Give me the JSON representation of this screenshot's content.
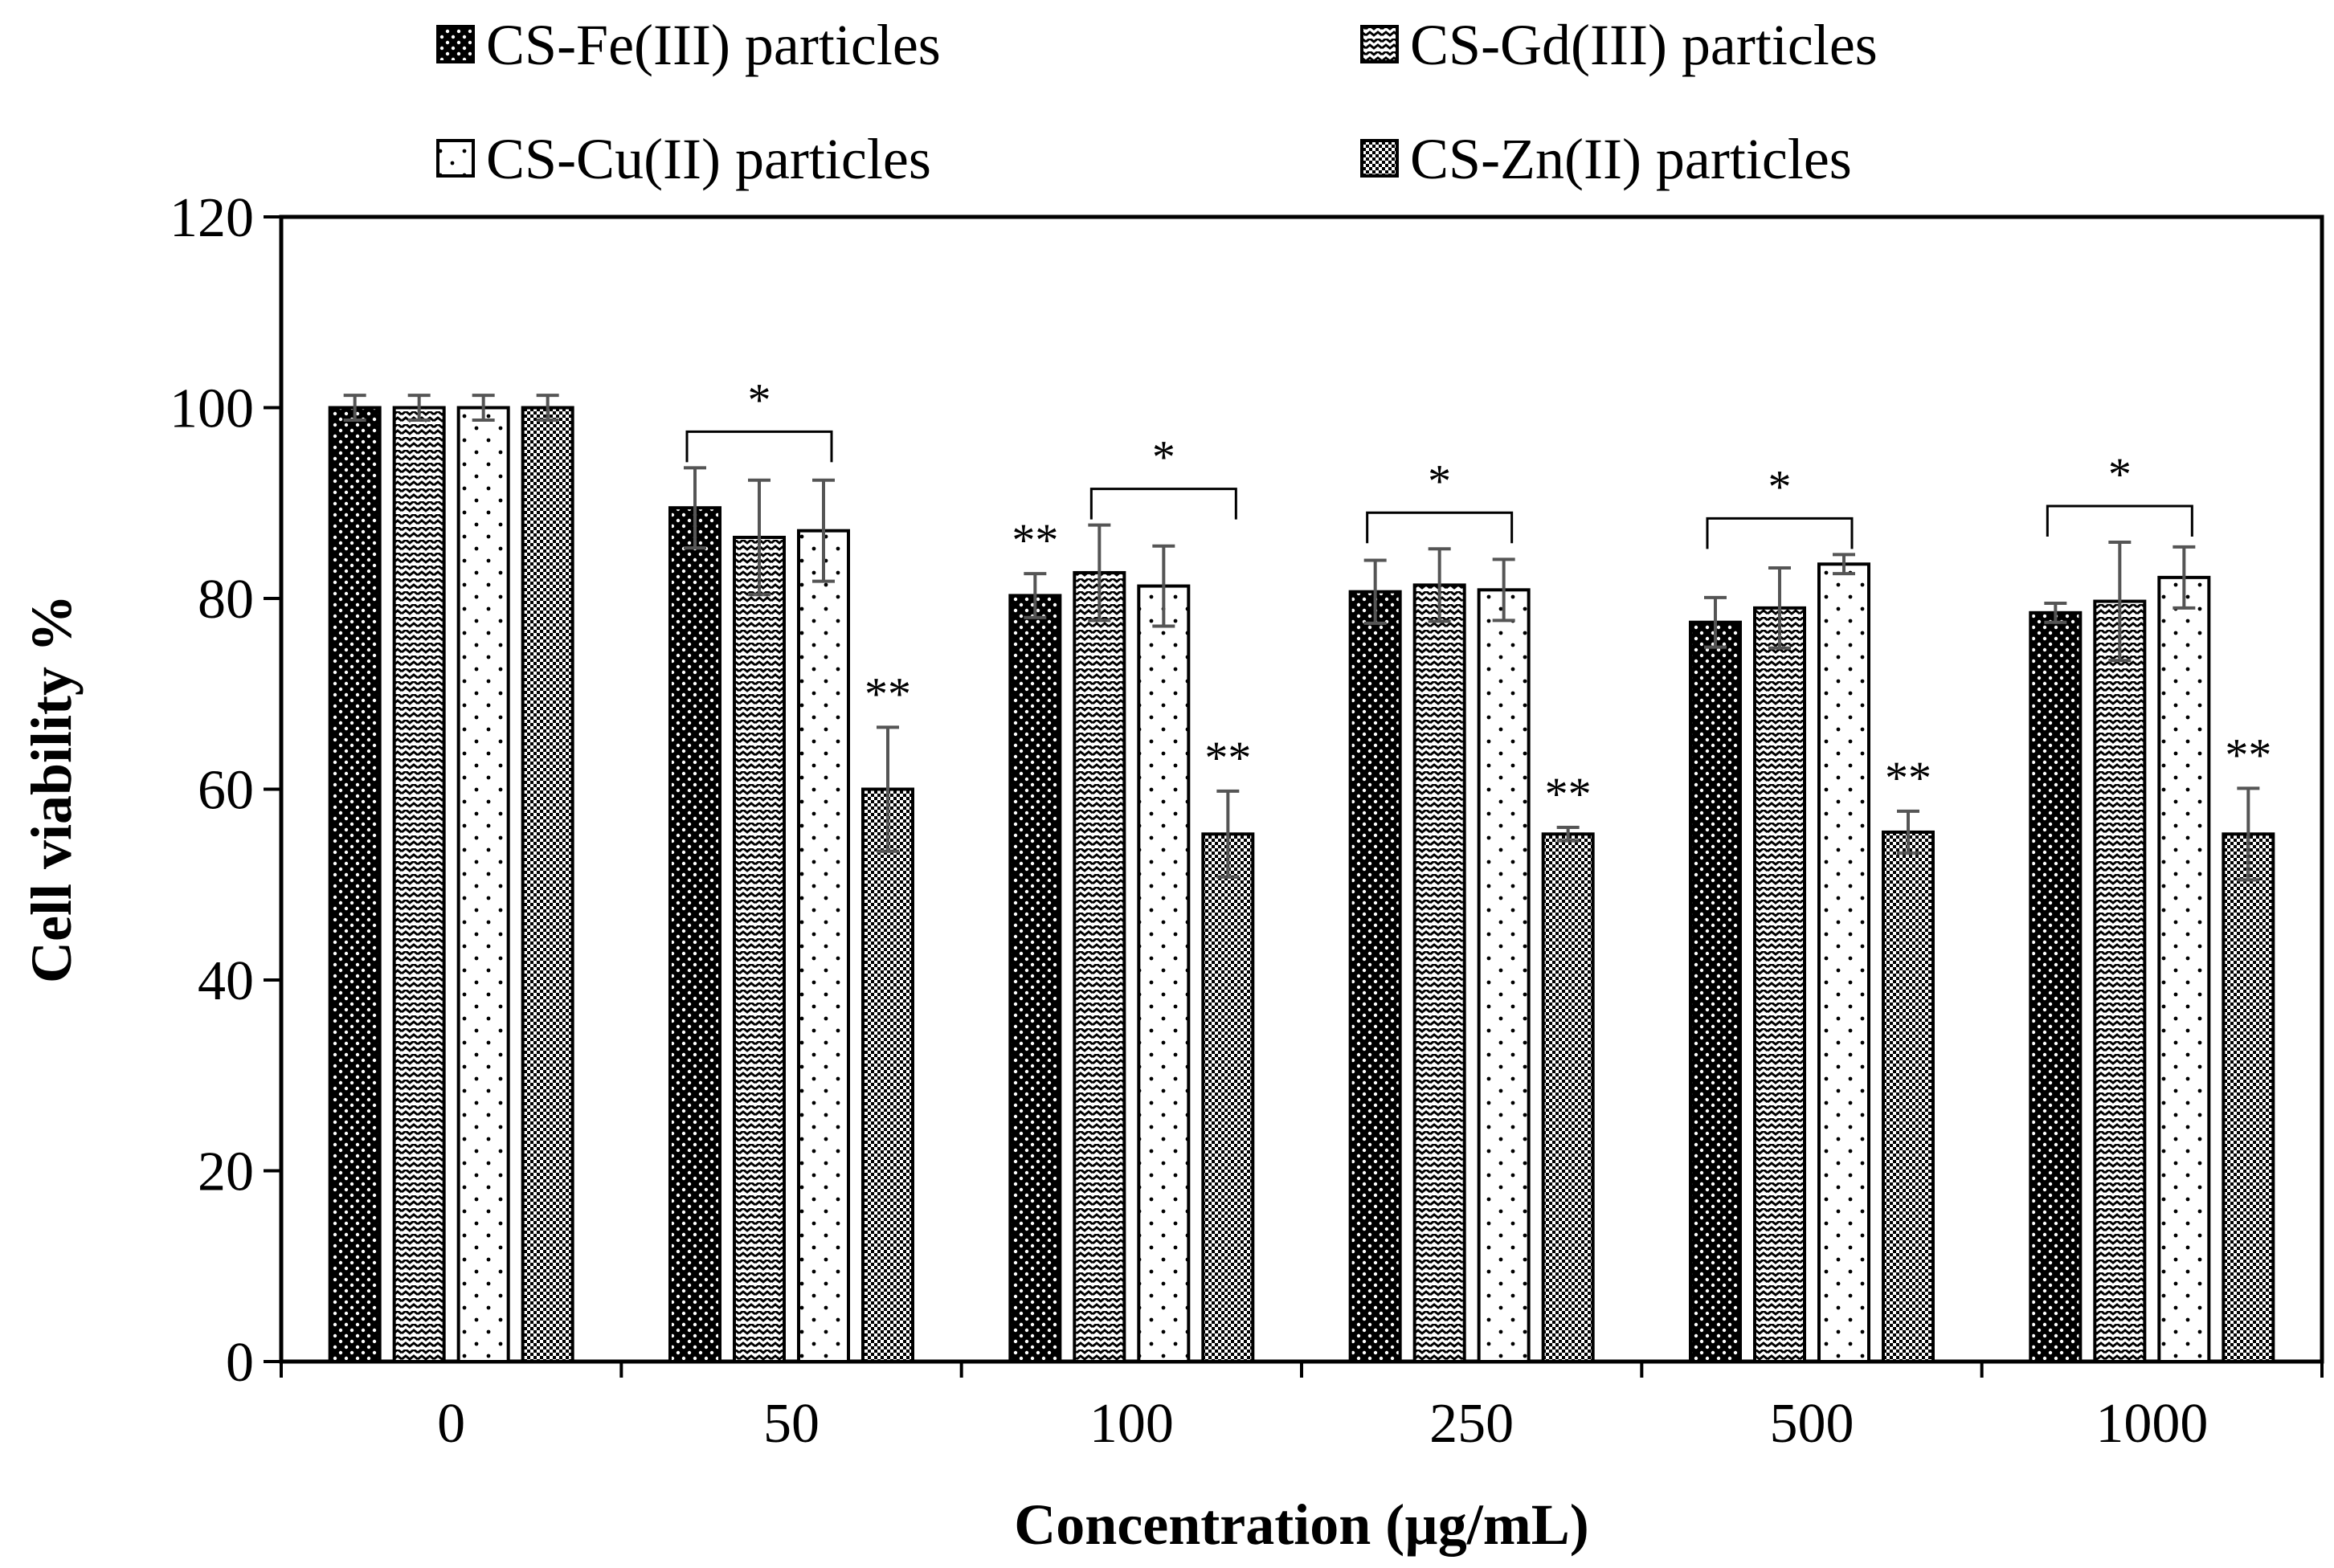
{
  "chart_data": {
    "type": "bar",
    "title": "",
    "xlabel": "Concentration (µg/mL)",
    "ylabel": "Cell viability %",
    "ylim": [
      0,
      120
    ],
    "yticks": [
      0,
      20,
      40,
      60,
      80,
      100,
      120
    ],
    "grid": false,
    "legend_position": "top",
    "categories": [
      "0",
      "50",
      "100",
      "250",
      "500",
      "1000"
    ],
    "series": [
      {
        "name": "CS-Fe(III) particles",
        "values": [
          100,
          89.5,
          80.3,
          80.7,
          77.5,
          78.5
        ],
        "errors": [
          1.3,
          4.2,
          2.3,
          3.3,
          2.6,
          1.0
        ]
      },
      {
        "name": "CS-Gd(III) particles",
        "values": [
          100,
          86.4,
          82.7,
          81.4,
          79.0,
          79.7
        ],
        "errors": [
          1.3,
          6.0,
          5.0,
          3.8,
          4.2,
          6.2
        ]
      },
      {
        "name": "CS-Cu(II) particles",
        "values": [
          100,
          87.1,
          81.3,
          80.9,
          83.6,
          82.2
        ],
        "errors": [
          1.3,
          5.3,
          4.2,
          3.2,
          1.0,
          3.2
        ]
      },
      {
        "name": "CS-Zn(II) particles",
        "values": [
          100,
          60.0,
          55.3,
          55.3,
          55.5,
          55.3
        ],
        "errors": [
          1.3,
          6.5,
          4.5,
          0.7,
          2.2,
          4.8
        ]
      }
    ],
    "brackets": [
      {
        "category": 1,
        "label": "*",
        "from_series": 0,
        "to_series": 2
      },
      {
        "category": 2,
        "label": "*",
        "from_series": 1,
        "to_series": 3
      },
      {
        "category": 3,
        "label": "*",
        "from_series": 0,
        "to_series": 2
      },
      {
        "category": 4,
        "label": "*",
        "from_series": 0,
        "to_series": 2
      },
      {
        "category": 5,
        "label": "*",
        "from_series": 0,
        "to_series": 2
      }
    ],
    "annotations": [
      {
        "category": 1,
        "series": 3,
        "label": "**"
      },
      {
        "category": 2,
        "series": 0,
        "label": "**"
      },
      {
        "category": 2,
        "series": 3,
        "label": "**"
      },
      {
        "category": 3,
        "series": 3,
        "label": "**"
      },
      {
        "category": 4,
        "series": 3,
        "label": "**"
      },
      {
        "category": 5,
        "series": 3,
        "label": "**"
      }
    ]
  }
}
